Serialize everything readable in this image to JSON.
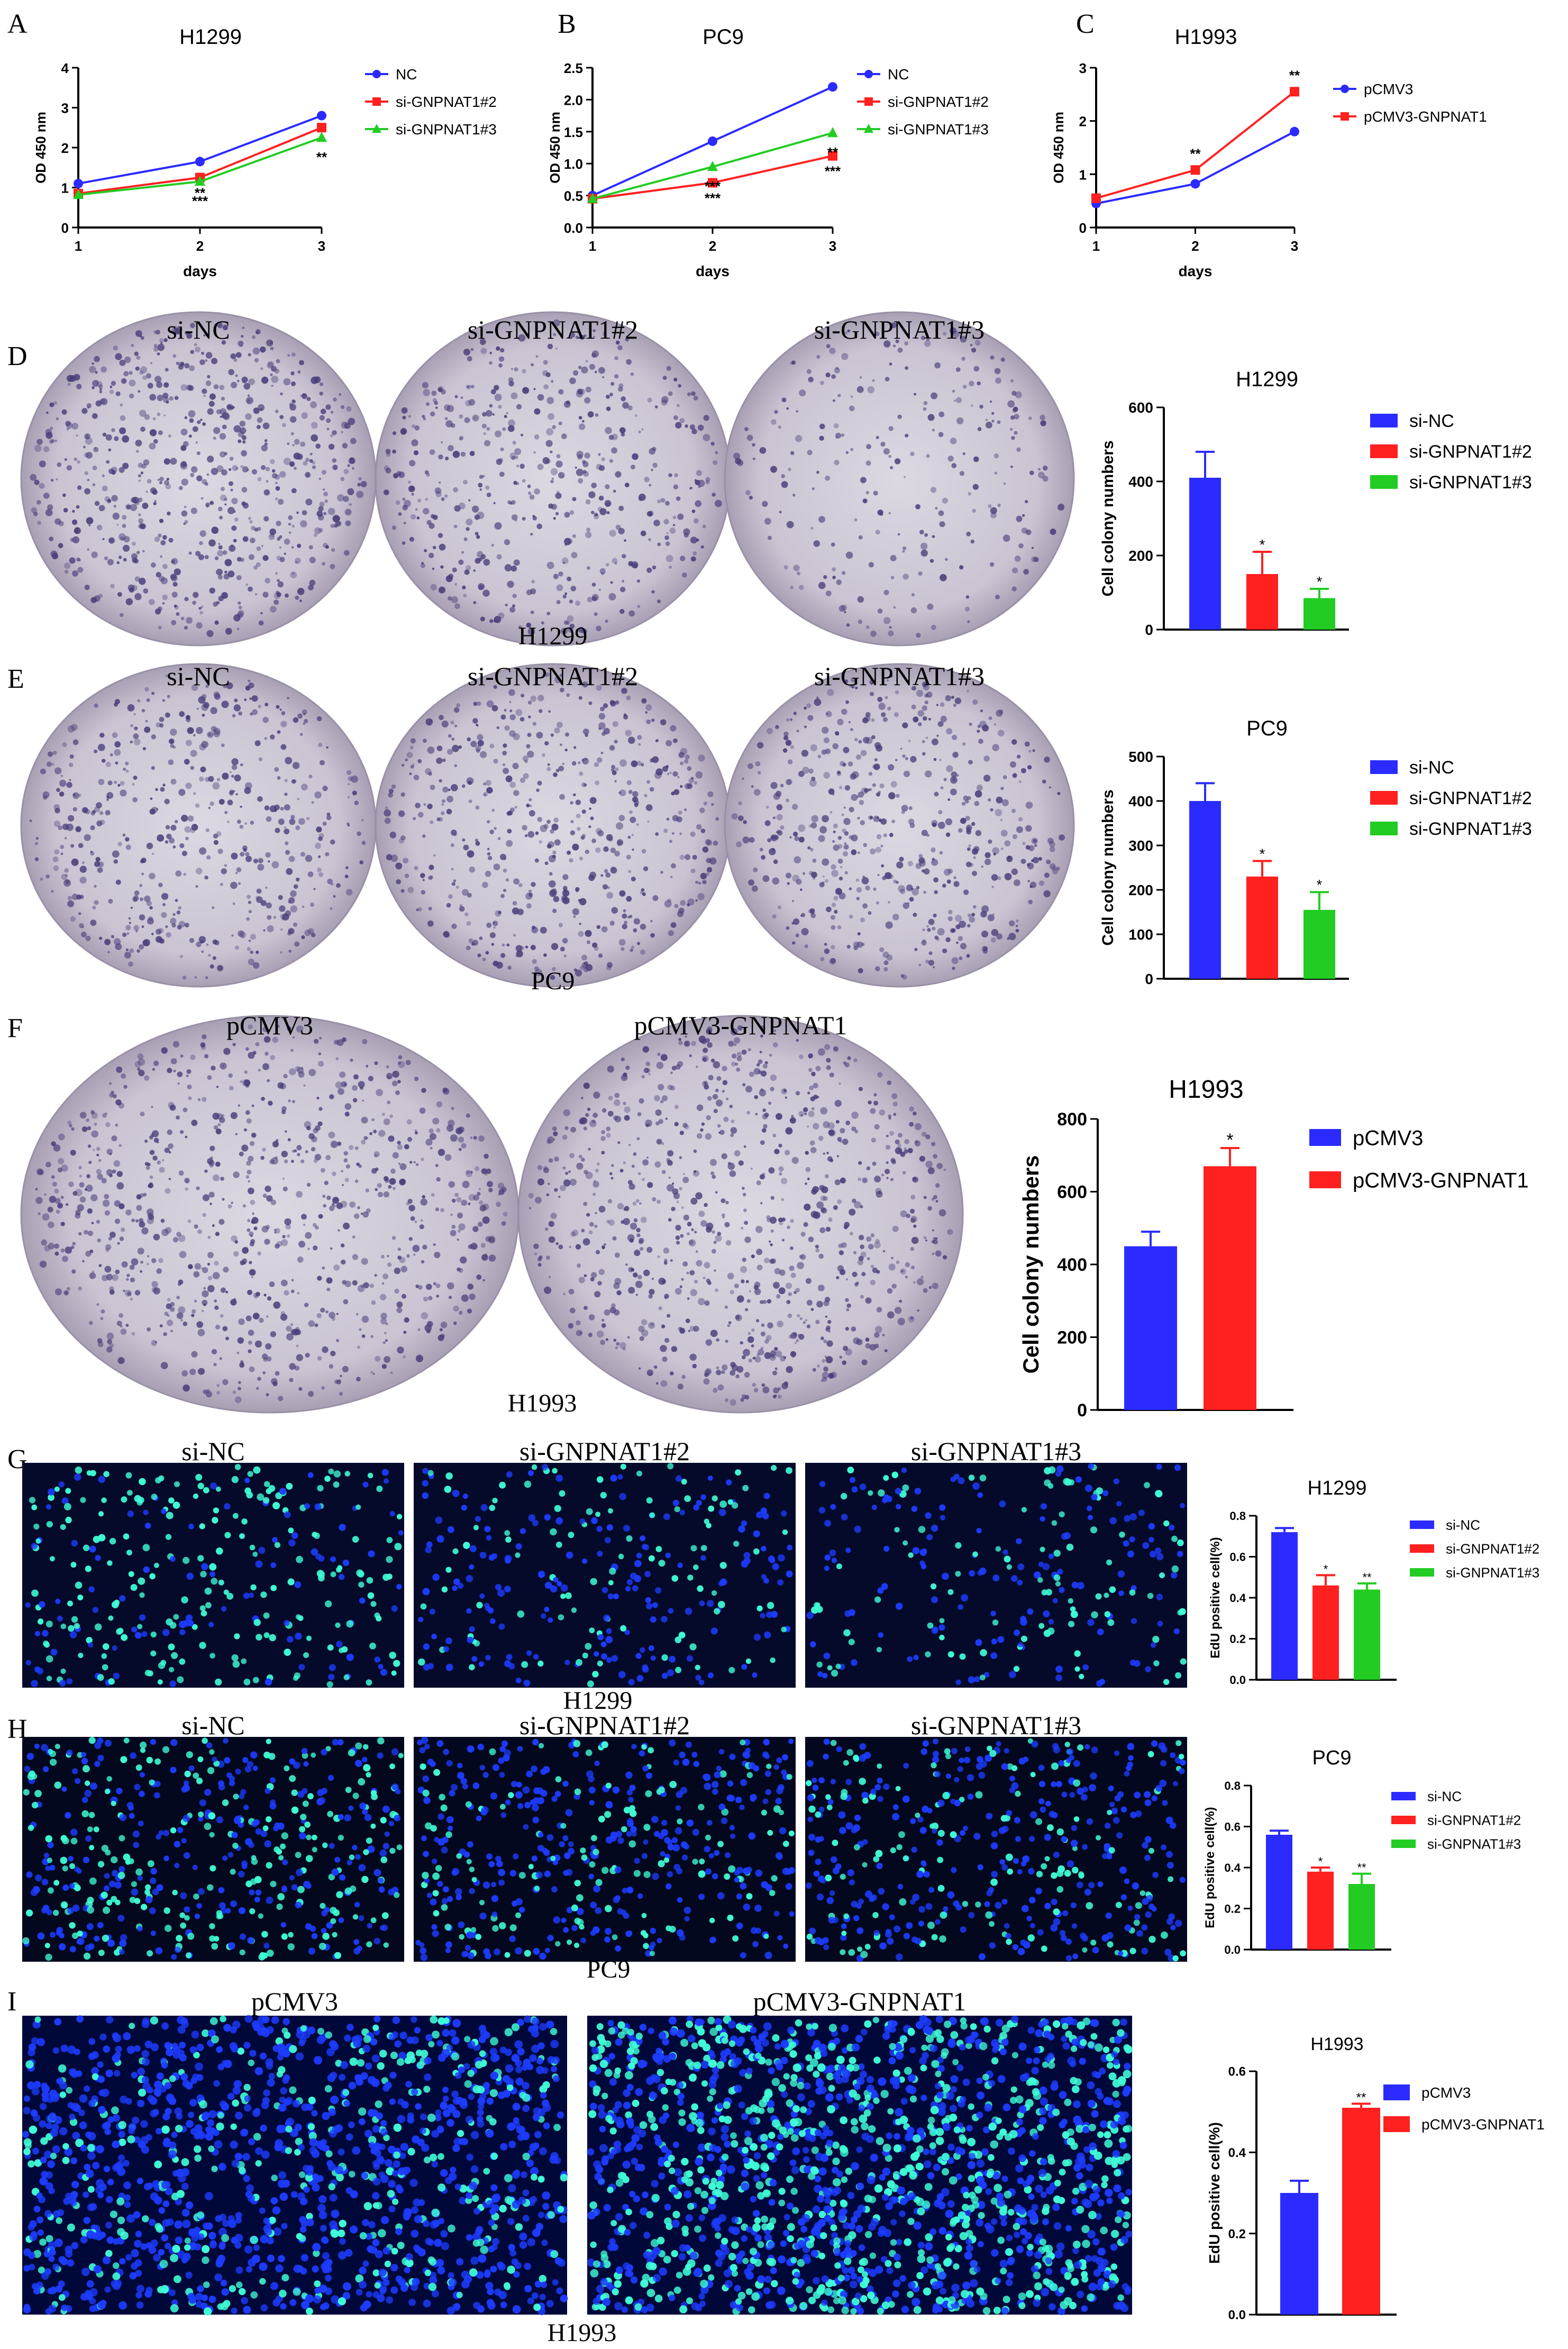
{
  "figure": {
    "panel_letters": [
      "A",
      "B",
      "C",
      "D",
      "E",
      "F",
      "G",
      "H",
      "I"
    ],
    "line_xlabel": "days",
    "line_ylabel": "OD 450 nm",
    "colony_ylabel": "Cell colony numbers",
    "edu_ylabel": "EdU positive cell(%)"
  },
  "images": {
    "D": {
      "labels": [
        "si-NC",
        "si-GNPNAT1#2",
        "si-GNPNAT1#3"
      ],
      "caption": "H1299"
    },
    "E": {
      "labels": [
        "si-NC",
        "si-GNPNAT1#2",
        "si-GNPNAT1#3"
      ],
      "caption": "PC9"
    },
    "F": {
      "labels": [
        "pCMV3",
        "pCMV3-GNPNAT1"
      ],
      "caption": "H1993"
    },
    "G": {
      "labels": [
        "si-NC",
        "si-GNPNAT1#2",
        "si-GNPNAT1#3"
      ],
      "caption": "H1299"
    },
    "H": {
      "labels": [
        "si-NC",
        "si-GNPNAT1#2",
        "si-GNPNAT1#3"
      ],
      "caption": "PC9"
    },
    "I": {
      "labels": [
        "pCMV3",
        "pCMV3-GNPNAT1"
      ],
      "caption": "H1993"
    }
  },
  "colors": {
    "blue": "#2b2bff",
    "red": "#ff2020",
    "green": "#22cc22",
    "dish": "#cfc8d4",
    "colony": "#4a3d7a",
    "nucleus": "#1d3cff",
    "edu": "#40ffd8"
  },
  "chart_data": [
    {
      "id": "A",
      "type": "line",
      "title": "H1299",
      "xlabel": "days",
      "ylabel": "OD 450 nm",
      "x": [
        1,
        2,
        3
      ],
      "xticks": [
        "1",
        "2",
        "3"
      ],
      "ylim": [
        0,
        4
      ],
      "yticks": [
        "0",
        "1",
        "2",
        "3",
        "4"
      ],
      "series": [
        {
          "name": "NC",
          "color": "#2b2bff",
          "marker": "circle",
          "values": [
            1.1,
            1.65,
            2.8
          ],
          "annotations": [
            "",
            "",
            ""
          ]
        },
        {
          "name": "si-GNPNAT1#2",
          "color": "#ff2020",
          "marker": "square",
          "values": [
            0.85,
            1.25,
            2.5
          ],
          "annotations": [
            "",
            "**",
            ""
          ]
        },
        {
          "name": "si-GNPNAT1#3",
          "color": "#22cc22",
          "marker": "triangle",
          "values": [
            0.82,
            1.15,
            2.25
          ],
          "annotations": [
            "",
            "***",
            "**"
          ]
        }
      ]
    },
    {
      "id": "B",
      "type": "line",
      "title": "PC9",
      "xlabel": "days",
      "ylabel": "OD 450 nm",
      "x": [
        1,
        2,
        3
      ],
      "xticks": [
        "1",
        "2",
        "3"
      ],
      "ylim": [
        0,
        2.5
      ],
      "yticks": [
        "0.0",
        "0.5",
        "1.0",
        "1.5",
        "2.0",
        "2.5"
      ],
      "series": [
        {
          "name": "NC",
          "color": "#2b2bff",
          "marker": "circle",
          "values": [
            0.5,
            1.35,
            2.2
          ],
          "annotations": [
            "",
            "",
            ""
          ]
        },
        {
          "name": "si-GNPNAT1#2",
          "color": "#ff2020",
          "marker": "square",
          "values": [
            0.45,
            0.7,
            1.12
          ],
          "annotations": [
            "",
            "***",
            "***"
          ]
        },
        {
          "name": "si-GNPNAT1#3",
          "color": "#22cc22",
          "marker": "triangle",
          "values": [
            0.45,
            0.95,
            1.48
          ],
          "annotations": [
            "",
            "***",
            "**"
          ]
        }
      ]
    },
    {
      "id": "C",
      "type": "line",
      "title": "H1993",
      "xlabel": "days",
      "ylabel": "OD 450 nm",
      "x": [
        1,
        2,
        3
      ],
      "xticks": [
        "1",
        "2",
        "3"
      ],
      "ylim": [
        0,
        3
      ],
      "yticks": [
        "0",
        "1",
        "2",
        "3"
      ],
      "series": [
        {
          "name": "pCMV3",
          "color": "#2b2bff",
          "marker": "circle",
          "values": [
            0.45,
            0.82,
            1.8
          ],
          "annotations": [
            "",
            "",
            ""
          ]
        },
        {
          "name": "pCMV3-GNPNAT1",
          "color": "#ff2020",
          "marker": "square",
          "values": [
            0.55,
            1.08,
            2.55
          ],
          "annotations": [
            "",
            "**",
            "**"
          ]
        }
      ]
    },
    {
      "id": "D",
      "type": "bar",
      "title": "H1299",
      "ylabel": "Cell colony numbers",
      "categories": [
        "si-NC",
        "si-GNPNAT1#2",
        "si-GNPNAT1#3"
      ],
      "values": [
        410,
        150,
        85
      ],
      "errors": [
        70,
        60,
        25
      ],
      "annotations": [
        "",
        "*",
        "*"
      ],
      "colors": [
        "#2b2bff",
        "#ff2020",
        "#22cc22"
      ],
      "ylim": [
        0,
        600
      ],
      "yticks": [
        "0",
        "200",
        "400",
        "600"
      ]
    },
    {
      "id": "E",
      "type": "bar",
      "title": "PC9",
      "ylabel": "Cell colony numbers",
      "categories": [
        "si-NC",
        "si-GNPNAT1#2",
        "si-GNPNAT1#3"
      ],
      "values": [
        400,
        230,
        155
      ],
      "errors": [
        40,
        35,
        40
      ],
      "annotations": [
        "",
        "*",
        "*"
      ],
      "colors": [
        "#2b2bff",
        "#ff2020",
        "#22cc22"
      ],
      "ylim": [
        0,
        500
      ],
      "yticks": [
        "0",
        "100",
        "200",
        "300",
        "400",
        "500"
      ]
    },
    {
      "id": "F",
      "type": "bar",
      "title": "H1993",
      "ylabel": "Cell colony numbers",
      "categories": [
        "pCMV3",
        "pCMV3-GNPNAT1"
      ],
      "values": [
        450,
        670
      ],
      "errors": [
        40,
        50
      ],
      "annotations": [
        "",
        "*"
      ],
      "colors": [
        "#2b2bff",
        "#ff2020"
      ],
      "ylim": [
        0,
        800
      ],
      "yticks": [
        "0",
        "200",
        "400",
        "600",
        "800"
      ]
    },
    {
      "id": "G",
      "type": "bar",
      "title": "H1299",
      "ylabel": "EdU positive cell(%)",
      "categories": [
        "si-NC",
        "si-GNPNAT1#2",
        "si-GNPNAT1#3"
      ],
      "values": [
        0.72,
        0.46,
        0.44
      ],
      "errors": [
        0.02,
        0.05,
        0.03
      ],
      "annotations": [
        "",
        "*",
        "**"
      ],
      "colors": [
        "#2b2bff",
        "#ff2020",
        "#22cc22"
      ],
      "ylim": [
        0,
        0.8
      ],
      "yticks": [
        "0.0",
        "0.2",
        "0.4",
        "0.6",
        "0.8"
      ]
    },
    {
      "id": "H",
      "type": "bar",
      "title": "PC9",
      "ylabel": "EdU positive cell(%)",
      "categories": [
        "si-NC",
        "si-GNPNAT1#2",
        "si-GNPNAT1#3"
      ],
      "values": [
        0.56,
        0.38,
        0.32
      ],
      "errors": [
        0.02,
        0.02,
        0.05
      ],
      "annotations": [
        "",
        "*",
        "**"
      ],
      "colors": [
        "#2b2bff",
        "#ff2020",
        "#22cc22"
      ],
      "ylim": [
        0,
        0.8
      ],
      "yticks": [
        "0.0",
        "0.2",
        "0.4",
        "0.6",
        "0.8"
      ]
    },
    {
      "id": "I",
      "type": "bar",
      "title": "H1993",
      "ylabel": "EdU positive cell(%)",
      "categories": [
        "pCMV3",
        "pCMV3-GNPNAT1"
      ],
      "values": [
        0.3,
        0.51
      ],
      "errors": [
        0.03,
        0.01
      ],
      "annotations": [
        "",
        "**"
      ],
      "colors": [
        "#2b2bff",
        "#ff2020"
      ],
      "ylim": [
        0,
        0.6
      ],
      "yticks": [
        "0.0",
        "0.2",
        "0.4",
        "0.6"
      ]
    }
  ]
}
